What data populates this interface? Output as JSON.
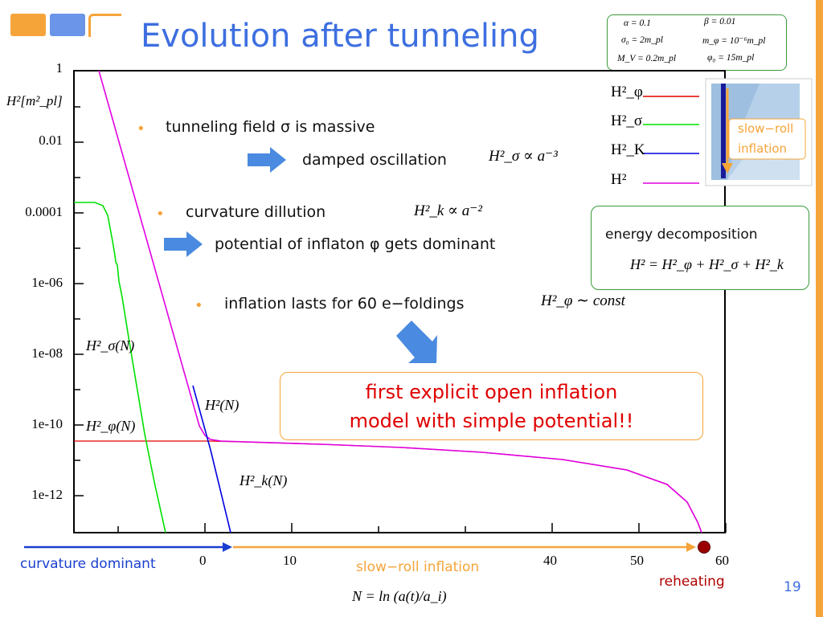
{
  "slide": {
    "title": "Evolution after tunneling",
    "page_number": "19",
    "logo_colors": [
      "#f5a43a",
      "#6a95e8",
      "#f5a43a"
    ]
  },
  "params": {
    "alpha": "α = 0.1",
    "beta": "β = 0.01",
    "sigma0": "σ₀ = 2m_pl",
    "m_phi": "m_φ = 10⁻⁶m_pl",
    "M_V": "M_V = 0.2m_pl",
    "phi0": "φ₀ = 15m_pl"
  },
  "bullets": [
    {
      "text": "tunneling field σ  is massive"
    },
    {
      "text": "curvature dillution"
    },
    {
      "text": "inflation lasts for 60 e−foldings"
    }
  ],
  "subpoints": [
    {
      "text": "damped oscillation",
      "math": "H²_σ ∝ a⁻³"
    },
    {
      "text": "potential of inflaton φ  gets dominant"
    }
  ],
  "math_inline": {
    "curvature": "H²_k ∝ a⁻²",
    "const": "H²_φ ∼ const"
  },
  "energy_box": {
    "title": "energy decomposition",
    "formula": "H² = H²_φ + H²_σ + H²_k"
  },
  "explicit_box": {
    "line1": "first explicit open inflation",
    "line2": "model with simple potential!!"
  },
  "legend": {
    "items": [
      {
        "label": "H²_φ",
        "color": "#e00000"
      },
      {
        "label": "H²_σ",
        "color": "#00e000"
      },
      {
        "label": "H²_K",
        "color": "#0000e0"
      },
      {
        "label": "H²",
        "color": "#e000e0"
      }
    ],
    "inset_label_line1": "slow−roll",
    "inset_label_line2": "inflation"
  },
  "axis": {
    "ylabel": "H²[m²_pl]",
    "yticks": [
      "1",
      "0.01",
      "0.0001",
      "1e-06",
      "1e-08",
      "1e-10",
      "1e-12"
    ],
    "xticks": [
      "0",
      "10",
      "40",
      "50",
      "60"
    ],
    "xlabel": "N = ln (a(t)/a_i)"
  },
  "curve_labels": {
    "sigma": "H²_σ(N)",
    "phi": "H²_φ(N)",
    "H": "H²(N)",
    "k": "H²_k(N)"
  },
  "phases": {
    "curvature": "curvature dominant",
    "slowroll": "slow−roll inflation",
    "reheating": "reheating"
  },
  "colors": {
    "title": "#3d6fe0",
    "accent": "#f5a43a",
    "box_green": "#3a9a3a",
    "phase_blue": "#1a3fd0",
    "reheat_red": "#b00000",
    "arrow_blue": "#4a8ae0"
  }
}
